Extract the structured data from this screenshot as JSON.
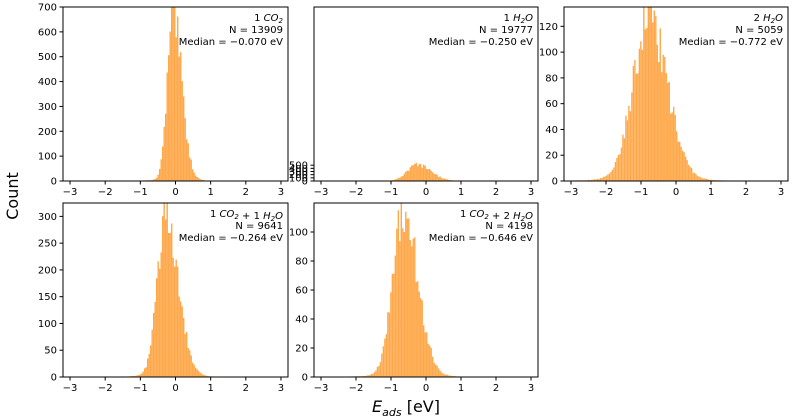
{
  "figure": {
    "ylabel": "Count",
    "xlabel_main": "E",
    "xlabel_sub": "ads",
    "xlabel_unit": " [eV]"
  },
  "colors": {
    "bar": "#ffa84a",
    "bar_edge": "#f59a2e",
    "axis": "#000000"
  },
  "chart_data": [
    {
      "type": "bar",
      "annotation": [
        "1 CO2",
        "N = 13909",
        "Median = −0.070 eV"
      ],
      "n": 13909,
      "median": -0.07,
      "spread": 0.16,
      "tail": 0.55,
      "xlim": [
        -3.2,
        3.2
      ],
      "ylim": [
        0,
        700
      ],
      "xticks": [
        -3,
        -2,
        -1,
        0,
        1,
        2,
        3
      ],
      "yticks": [
        0,
        100,
        200,
        300,
        400,
        500,
        600,
        700
      ],
      "xticklabels": [
        "−3",
        "−2",
        "−1",
        "0",
        "1",
        "2",
        "3"
      ],
      "yticklabels": [
        "0",
        "100",
        "200",
        "300",
        "400",
        "500",
        "600",
        "700"
      ],
      "peak": 670
    },
    {
      "type": "bar",
      "annotation": [
        "1 H2O",
        "N = 19777",
        "Median = −0.250 eV"
      ],
      "n": 19777,
      "median": -0.25,
      "spread": 0.28,
      "tail": 0.4,
      "xlim": [
        -3.2,
        3.2
      ],
      "ylim": [
        0,
        5500
      ],
      "xticks": [
        -3,
        -2,
        -1,
        0,
        1,
        2,
        3
      ],
      "yticks": [
        0,
        100,
        200,
        300,
        400,
        500
      ],
      "xticklabels": [
        "−3",
        "−2",
        "−1",
        "0",
        "1",
        "2",
        "3"
      ],
      "yticklabels": [
        "0",
        "100",
        "200",
        "300",
        "400",
        "500"
      ],
      "peak": 510
    },
    {
      "type": "bar",
      "annotation": [
        "2 H2O",
        "N = 5059",
        "Median = −0.772 eV"
      ],
      "n": 5059,
      "median": -0.772,
      "spread": 0.45,
      "tail": 0.15,
      "xlim": [
        -3.2,
        3.2
      ],
      "ylim": [
        0,
        135
      ],
      "xticks": [
        -3,
        -2,
        -1,
        0,
        1,
        2,
        3
      ],
      "yticks": [
        0,
        20,
        40,
        60,
        80,
        100,
        120
      ],
      "xticklabels": [
        "−3",
        "−2",
        "−1",
        "0",
        "1",
        "2",
        "3"
      ],
      "yticklabels": [
        "0",
        "20",
        "40",
        "60",
        "80",
        "100",
        "120"
      ],
      "peak": 127
    },
    {
      "type": "bar",
      "annotation": [
        "1 CO2 + 1 H2O",
        "N = 9641",
        "Median = −0.264 eV"
      ],
      "n": 9641,
      "median": -0.264,
      "spread": 0.24,
      "tail": 0.45,
      "xlim": [
        -3.2,
        3.2
      ],
      "ylim": [
        0,
        325
      ],
      "xticks": [
        -3,
        -2,
        -1,
        0,
        1,
        2,
        3
      ],
      "yticks": [
        0,
        50,
        100,
        150,
        200,
        250,
        300
      ],
      "xticklabels": [
        "−3",
        "−2",
        "−1",
        "0",
        "1",
        "2",
        "3"
      ],
      "yticklabels": [
        "0",
        "50",
        "100",
        "150",
        "200",
        "250",
        "300"
      ],
      "peak": 312
    },
    {
      "type": "bar",
      "annotation": [
        "1 CO2 + 2 H2O",
        "N = 4198",
        "Median = −0.646 eV"
      ],
      "n": 4198,
      "median": -0.646,
      "spread": 0.3,
      "tail": 0.35,
      "xlim": [
        -3.2,
        3.2
      ],
      "ylim": [
        0,
        120
      ],
      "xticks": [
        -3,
        -2,
        -1,
        0,
        1,
        2,
        3
      ],
      "yticks": [
        0,
        20,
        40,
        60,
        80,
        100
      ],
      "xticklabels": [
        "−3",
        "−2",
        "−1",
        "0",
        "1",
        "2",
        "3"
      ],
      "yticklabels": [
        "0",
        "20",
        "40",
        "60",
        "80",
        "100"
      ],
      "peak": 117
    }
  ]
}
